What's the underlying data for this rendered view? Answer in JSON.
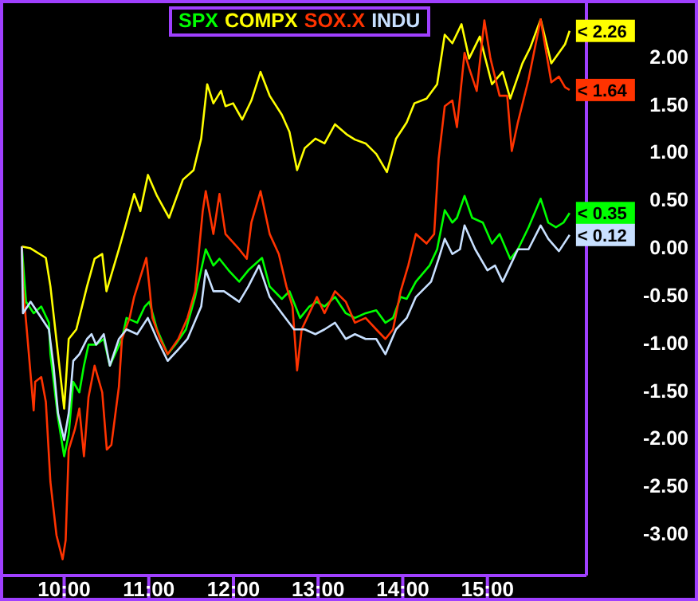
{
  "chart_data": {
    "type": "line",
    "legend": "top",
    "xlim": [
      9.28,
      16.17
    ],
    "ylim": [
      -3.45,
      2.55
    ],
    "xticks": [
      {
        "value": 10,
        "label": "10:00"
      },
      {
        "value": 11,
        "label": "11:00"
      },
      {
        "value": 12,
        "label": "12:00"
      },
      {
        "value": 13,
        "label": "13:00"
      },
      {
        "value": 14,
        "label": "14:00"
      },
      {
        "value": 15,
        "label": "15:00"
      }
    ],
    "yticks": [
      {
        "value": 2,
        "label": "2.00"
      },
      {
        "value": 1.5,
        "label": "1.50"
      },
      {
        "value": 1,
        "label": "1.00"
      },
      {
        "value": 0.5,
        "label": "0.50"
      },
      {
        "value": 0,
        "label": "0.00"
      },
      {
        "value": -0.5,
        "label": "-0.50"
      },
      {
        "value": -1,
        "label": "-1.00"
      },
      {
        "value": -1.5,
        "label": "-1.50"
      },
      {
        "value": -2,
        "label": "-2.00"
      },
      {
        "value": -2.5,
        "label": "-2.50"
      },
      {
        "value": -3,
        "label": "-3.00"
      }
    ],
    "series": [
      {
        "name": "SPX",
        "color": "#00ff00",
        "x": [
          9.5,
          9.55,
          9.64,
          9.73,
          9.82,
          9.838,
          9.928,
          10.0,
          10.054,
          10.108,
          10.18,
          10.234,
          10.288,
          10.378,
          10.468,
          10.54,
          10.683,
          10.737,
          10.863,
          10.953,
          11.007,
          11.097,
          11.223,
          11.313,
          11.439,
          11.547,
          11.673,
          11.763,
          11.835,
          11.942,
          12.068,
          12.176,
          12.338,
          12.428,
          12.572,
          12.662,
          12.788,
          12.896,
          12.986,
          13.076,
          13.2,
          13.327,
          13.435,
          13.561,
          13.687,
          13.795,
          13.885,
          13.975,
          14.047,
          14.155,
          14.317,
          14.406,
          14.496,
          14.586,
          14.64,
          14.73,
          14.82,
          14.946,
          15.054,
          15.144,
          15.27,
          15.36,
          15.486,
          15.629,
          15.719,
          15.809,
          15.899,
          15.971
        ],
        "values": [
          0,
          -0.58,
          -0.7,
          -0.63,
          -0.8,
          -1.13,
          -1.8,
          -2.2,
          -1.97,
          -1.42,
          -1.53,
          -1.25,
          -1.03,
          -1.03,
          -0.97,
          -1.25,
          -0.97,
          -0.75,
          -0.8,
          -0.63,
          -0.58,
          -0.87,
          -1.13,
          -1.03,
          -0.87,
          -0.53,
          -0.03,
          -0.2,
          -0.13,
          -0.25,
          -0.37,
          -0.25,
          -0.12,
          -0.42,
          -0.55,
          -0.47,
          -0.75,
          -0.63,
          -0.58,
          -0.63,
          -0.53,
          -0.7,
          -0.75,
          -0.7,
          -0.67,
          -0.8,
          -0.75,
          -0.53,
          -0.55,
          -0.37,
          -0.2,
          -0.03,
          0.38,
          0.25,
          0.3,
          0.53,
          0.3,
          0.25,
          0.03,
          0.13,
          -0.13,
          -0.03,
          0.2,
          0.5,
          0.25,
          0.2,
          0.25,
          0.35
        ]
      },
      {
        "name": "COMPX",
        "color": "#ffff00",
        "x": [
          9.5,
          9.604,
          9.784,
          9.838,
          10.0,
          10.054,
          10.144,
          10.27,
          10.36,
          10.45,
          10.5,
          10.647,
          10.72,
          10.827,
          10.9,
          10.99,
          11.097,
          11.24,
          11.403,
          11.529,
          11.619,
          11.69,
          11.763,
          11.853,
          11.906,
          11.996,
          12.104,
          12.212,
          12.32,
          12.428,
          12.572,
          12.662,
          12.752,
          12.842,
          12.968,
          13.076,
          13.2,
          13.345,
          13.435,
          13.561,
          13.687,
          13.813,
          13.921,
          14.047,
          14.137,
          14.281,
          14.406,
          14.496,
          14.586,
          14.694,
          14.784,
          14.91,
          15.054,
          15.18,
          15.27,
          15.414,
          15.504,
          15.629,
          15.755,
          15.845,
          15.917,
          15.971
        ],
        "values": [
          0,
          -0.02,
          -0.12,
          -0.42,
          -1.7,
          -0.97,
          -0.87,
          -0.42,
          -0.13,
          -0.08,
          -0.47,
          -0.03,
          0.2,
          0.55,
          0.37,
          0.75,
          0.53,
          0.3,
          0.7,
          0.8,
          1.13,
          1.7,
          1.5,
          1.63,
          1.47,
          1.5,
          1.33,
          1.53,
          1.83,
          1.58,
          1.38,
          1.2,
          0.8,
          1.03,
          1.13,
          1.08,
          1.28,
          1.17,
          1.12,
          1.08,
          0.97,
          0.78,
          1.13,
          1.3,
          1.5,
          1.55,
          1.7,
          2.22,
          2.13,
          2.33,
          1.97,
          2.2,
          1.7,
          1.83,
          1.55,
          1.92,
          2.08,
          2.38,
          1.92,
          2.03,
          2.12,
          2.26
        ]
      },
      {
        "name": "SOX.X",
        "color": "#ff3300",
        "x": [
          9.5,
          9.514,
          9.568,
          9.64,
          9.658,
          9.73,
          9.784,
          9.838,
          9.91,
          9.982,
          10.018,
          10.054,
          10.126,
          10.18,
          10.234,
          10.288,
          10.36,
          10.45,
          10.504,
          10.558,
          10.647,
          10.683,
          10.773,
          10.827,
          10.971,
          11.007,
          11.043,
          11.133,
          11.223,
          11.349,
          11.457,
          11.547,
          11.637,
          11.673,
          11.763,
          11.835,
          11.906,
          12.068,
          12.158,
          12.212,
          12.32,
          12.428,
          12.536,
          12.626,
          12.698,
          12.752,
          12.806,
          12.896,
          12.986,
          13.076,
          13.2,
          13.327,
          13.435,
          13.561,
          13.687,
          13.795,
          13.885,
          13.975,
          14.065,
          14.155,
          14.281,
          14.371,
          14.424,
          14.496,
          14.586,
          14.64,
          14.73,
          14.784,
          14.874,
          14.964,
          15.036,
          15.144,
          15.234,
          15.288,
          15.36,
          15.486,
          15.629,
          15.755,
          15.845,
          15.917,
          15.971
        ],
        "values": [
          0,
          -0.42,
          -0.97,
          -1.72,
          -1.42,
          -1.37,
          -1.63,
          -2.47,
          -3.03,
          -3.28,
          -3.08,
          -2.13,
          -1.92,
          -1.7,
          -2.2,
          -1.58,
          -1.25,
          -1.53,
          -2.13,
          -2.08,
          -1.47,
          -0.97,
          -0.75,
          -0.53,
          -0.12,
          -0.42,
          -0.75,
          -0.97,
          -1.13,
          -0.97,
          -0.75,
          -0.47,
          0.37,
          0.58,
          0.13,
          0.55,
          0.13,
          -0.03,
          -0.13,
          0.25,
          0.58,
          0.13,
          -0.08,
          -0.42,
          -0.63,
          -1.3,
          -0.87,
          -0.7,
          -0.53,
          -0.7,
          -0.47,
          -0.58,
          -0.8,
          -0.75,
          -0.87,
          -0.97,
          -0.87,
          -0.47,
          -0.2,
          0.13,
          0.03,
          0.13,
          0.92,
          1.47,
          1.53,
          1.25,
          2.03,
          1.87,
          1.63,
          2.37,
          1.97,
          1.58,
          1.58,
          1.0,
          1.3,
          1.75,
          2.38,
          1.72,
          1.78,
          1.67,
          1.64
        ]
      },
      {
        "name": "INDU",
        "color": "#c8e0ff",
        "x": [
          9.5,
          9.514,
          9.604,
          9.694,
          9.82,
          9.874,
          9.928,
          10.0,
          10.054,
          10.108,
          10.18,
          10.27,
          10.324,
          10.378,
          10.468,
          10.54,
          10.647,
          10.737,
          10.863,
          10.989,
          11.097,
          11.223,
          11.349,
          11.457,
          11.619,
          11.673,
          11.763,
          11.888,
          12.068,
          12.176,
          12.302,
          12.428,
          12.572,
          12.716,
          12.842,
          12.968,
          13.076,
          13.2,
          13.327,
          13.435,
          13.561,
          13.687,
          13.795,
          13.921,
          14.047,
          14.155,
          14.335,
          14.424,
          14.496,
          14.586,
          14.676,
          14.73,
          14.856,
          15.0,
          15.09,
          15.18,
          15.27,
          15.36,
          15.486,
          15.629,
          15.719,
          15.845,
          15.971
        ],
        "values": [
          0,
          -0.7,
          -0.58,
          -0.7,
          -0.87,
          -1.25,
          -1.75,
          -2.03,
          -1.75,
          -1.2,
          -1.13,
          -0.97,
          -0.92,
          -1.03,
          -0.92,
          -1.25,
          -0.97,
          -0.87,
          -0.92,
          -0.75,
          -0.97,
          -1.2,
          -1.08,
          -0.97,
          -0.63,
          -0.25,
          -0.47,
          -0.47,
          -0.58,
          -0.42,
          -0.2,
          -0.53,
          -0.7,
          -0.87,
          -0.87,
          -0.92,
          -0.87,
          -0.8,
          -0.97,
          -0.92,
          -0.97,
          -0.97,
          -1.13,
          -0.87,
          -0.75,
          -0.53,
          -0.37,
          -0.13,
          0.08,
          -0.08,
          -0.03,
          0.22,
          -0.03,
          -0.25,
          -0.2,
          -0.37,
          -0.2,
          -0.03,
          -0.03,
          0.22,
          0.08,
          -0.05,
          0.12
        ]
      }
    ],
    "annotations": [
      "< 2.26",
      "< 1.64",
      "< 0.35",
      "< 0.12"
    ]
  }
}
